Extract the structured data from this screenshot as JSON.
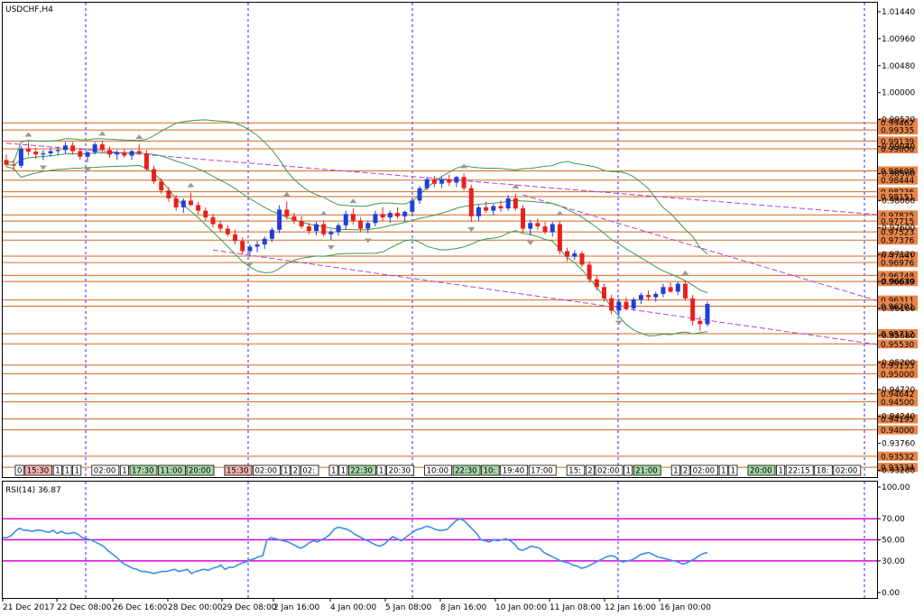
{
  "main": {
    "title": "USDCHF,H4"
  },
  "rsi": {
    "title": "RSI(14) 36.87"
  },
  "colors": {
    "bull": "#1f3fd8",
    "bear": "#e8201c",
    "level_line": "#d2691e",
    "trend_line": "#b040d8",
    "bollinger": "#3c9a4c",
    "rsi_line": "#3a8ee8",
    "rsi_level": "#e000e0",
    "grid": "#2a2aff"
  },
  "chart_data": [
    {
      "type": "candlestick",
      "title": "USDCHF,H4",
      "y_axis_ticks": [
        "1.01440",
        "1.00960",
        "1.00480",
        "1.00000",
        "0.99520",
        "0.99040",
        "0.98560",
        "0.98080",
        "0.97600",
        "0.97120",
        "0.96640",
        "0.96160",
        "0.95680",
        "0.95200",
        "0.94720",
        "0.94240",
        "0.93760",
        "0.93280"
      ],
      "x_axis_ticks": [
        "21 Dec 2017",
        "22 Dec 08:00",
        "26 Dec 16:00",
        "28 Dec 00:00",
        "29 Dec 08:00",
        "2 Jan 16:00",
        "4 Jan 00:00",
        "5 Jan 08:00",
        "8 Jan 16:00",
        "10 Jan 00:00",
        "11 Jan 08:00",
        "12 Jan 16:00",
        "16 Jan 00:00"
      ],
      "ylim": [
        0.9316,
        1.016
      ],
      "grid": "vertical dashed",
      "horizontal_levels": [
        0.99462,
        0.99335,
        0.99139,
        0.99,
        0.98608,
        0.98444,
        0.98236,
        0.98151,
        0.97825,
        0.97715,
        0.97523,
        0.97376,
        0.97091,
        0.96976,
        0.96748,
        0.96639,
        0.96311,
        0.96201,
        0.95712,
        0.9553,
        0.95153,
        0.95,
        0.94642,
        0.945,
        0.94195,
        0.94,
        0.93532,
        0.93334
      ],
      "time_labels": [
        "0",
        "15:30",
        "1",
        "1",
        "1",
        "02:00",
        "1",
        "17:30",
        "11:00",
        "20:00",
        "15:30",
        "02:00",
        "1",
        "2",
        "02:",
        "1",
        "1",
        "22:30",
        "1",
        "20:30",
        "10:00",
        "22:30",
        "10:",
        "19:40",
        "17:00",
        "15:",
        "2",
        "02:00",
        "1",
        "21:00",
        "1",
        "2",
        "02:00",
        "1",
        "1",
        "20:00",
        "1",
        "22:15",
        "18:",
        "02:00",
        "21:30"
      ],
      "candles": [
        {
          "o": 0.988,
          "h": 0.989,
          "l": 0.9868,
          "c": 0.9872
        },
        {
          "o": 0.9872,
          "h": 0.988,
          "l": 0.9862,
          "c": 0.987
        },
        {
          "o": 0.987,
          "h": 0.9905,
          "l": 0.9866,
          "c": 0.99
        },
        {
          "o": 0.99,
          "h": 0.9912,
          "l": 0.9888,
          "c": 0.9895
        },
        {
          "o": 0.9895,
          "h": 0.9902,
          "l": 0.9882,
          "c": 0.989
        },
        {
          "o": 0.989,
          "h": 0.9898,
          "l": 0.988,
          "c": 0.9892
        },
        {
          "o": 0.9892,
          "h": 0.9902,
          "l": 0.9886,
          "c": 0.9896
        },
        {
          "o": 0.9896,
          "h": 0.9904,
          "l": 0.9888,
          "c": 0.9898
        },
        {
          "o": 0.9898,
          "h": 0.9912,
          "l": 0.9892,
          "c": 0.9906
        },
        {
          "o": 0.9906,
          "h": 0.9912,
          "l": 0.989,
          "c": 0.9896
        },
        {
          "o": 0.9896,
          "h": 0.9902,
          "l": 0.988,
          "c": 0.9886
        },
        {
          "o": 0.9886,
          "h": 0.9896,
          "l": 0.9876,
          "c": 0.9894
        },
        {
          "o": 0.9894,
          "h": 0.9912,
          "l": 0.989,
          "c": 0.9908
        },
        {
          "o": 0.9908,
          "h": 0.9914,
          "l": 0.9894,
          "c": 0.9898
        },
        {
          "o": 0.9898,
          "h": 0.9904,
          "l": 0.9884,
          "c": 0.989
        },
        {
          "o": 0.989,
          "h": 0.9898,
          "l": 0.988,
          "c": 0.9894
        },
        {
          "o": 0.9894,
          "h": 0.99,
          "l": 0.9884,
          "c": 0.9888
        },
        {
          "o": 0.9888,
          "h": 0.9898,
          "l": 0.988,
          "c": 0.9896
        },
        {
          "o": 0.9896,
          "h": 0.9908,
          "l": 0.989,
          "c": 0.9892
        },
        {
          "o": 0.9892,
          "h": 0.9898,
          "l": 0.986,
          "c": 0.9864
        },
        {
          "o": 0.9864,
          "h": 0.987,
          "l": 0.9838,
          "c": 0.9842
        },
        {
          "o": 0.9842,
          "h": 0.9848,
          "l": 0.982,
          "c": 0.9826
        },
        {
          "o": 0.9826,
          "h": 0.9832,
          "l": 0.9806,
          "c": 0.9812
        },
        {
          "o": 0.9812,
          "h": 0.9818,
          "l": 0.979,
          "c": 0.9796
        },
        {
          "o": 0.9796,
          "h": 0.9812,
          "l": 0.9786,
          "c": 0.9808
        },
        {
          "o": 0.9808,
          "h": 0.9822,
          "l": 0.9798,
          "c": 0.98
        },
        {
          "o": 0.98,
          "h": 0.9806,
          "l": 0.9784,
          "c": 0.979
        },
        {
          "o": 0.979,
          "h": 0.9796,
          "l": 0.9772,
          "c": 0.9778
        },
        {
          "o": 0.9778,
          "h": 0.9784,
          "l": 0.976,
          "c": 0.9766
        },
        {
          "o": 0.9766,
          "h": 0.9772,
          "l": 0.9752,
          "c": 0.9758
        },
        {
          "o": 0.9758,
          "h": 0.9764,
          "l": 0.9744,
          "c": 0.9748
        },
        {
          "o": 0.9748,
          "h": 0.9756,
          "l": 0.973,
          "c": 0.9736
        },
        {
          "o": 0.9736,
          "h": 0.9742,
          "l": 0.9712,
          "c": 0.9718
        },
        {
          "o": 0.9718,
          "h": 0.973,
          "l": 0.9708,
          "c": 0.9726
        },
        {
          "o": 0.9726,
          "h": 0.9736,
          "l": 0.9716,
          "c": 0.973
        },
        {
          "o": 0.973,
          "h": 0.9744,
          "l": 0.9722,
          "c": 0.974
        },
        {
          "o": 0.974,
          "h": 0.976,
          "l": 0.9734,
          "c": 0.9756
        },
        {
          "o": 0.9756,
          "h": 0.98,
          "l": 0.975,
          "c": 0.9792
        },
        {
          "o": 0.9792,
          "h": 0.9806,
          "l": 0.9774,
          "c": 0.978
        },
        {
          "o": 0.978,
          "h": 0.9786,
          "l": 0.9766,
          "c": 0.9772
        },
        {
          "o": 0.9772,
          "h": 0.978,
          "l": 0.9758,
          "c": 0.9762
        },
        {
          "o": 0.9762,
          "h": 0.9768,
          "l": 0.9748,
          "c": 0.9754
        },
        {
          "o": 0.9754,
          "h": 0.977,
          "l": 0.9746,
          "c": 0.9766
        },
        {
          "o": 0.9766,
          "h": 0.9772,
          "l": 0.9744,
          "c": 0.9748
        },
        {
          "o": 0.9748,
          "h": 0.9756,
          "l": 0.9738,
          "c": 0.9752
        },
        {
          "o": 0.9752,
          "h": 0.9768,
          "l": 0.9746,
          "c": 0.9764
        },
        {
          "o": 0.9764,
          "h": 0.979,
          "l": 0.9756,
          "c": 0.9784
        },
        {
          "o": 0.9784,
          "h": 0.9794,
          "l": 0.9766,
          "c": 0.9772
        },
        {
          "o": 0.9772,
          "h": 0.9778,
          "l": 0.9752,
          "c": 0.9758
        },
        {
          "o": 0.9758,
          "h": 0.9772,
          "l": 0.975,
          "c": 0.9768
        },
        {
          "o": 0.9768,
          "h": 0.979,
          "l": 0.9762,
          "c": 0.9784
        },
        {
          "o": 0.9784,
          "h": 0.9796,
          "l": 0.9772,
          "c": 0.9778
        },
        {
          "o": 0.9778,
          "h": 0.979,
          "l": 0.9768,
          "c": 0.9786
        },
        {
          "o": 0.9786,
          "h": 0.9796,
          "l": 0.9776,
          "c": 0.978
        },
        {
          "o": 0.978,
          "h": 0.979,
          "l": 0.977,
          "c": 0.9788
        },
        {
          "o": 0.9788,
          "h": 0.9812,
          "l": 0.9782,
          "c": 0.9808
        },
        {
          "o": 0.9808,
          "h": 0.9834,
          "l": 0.9802,
          "c": 0.983
        },
        {
          "o": 0.983,
          "h": 0.985,
          "l": 0.9826,
          "c": 0.9846
        },
        {
          "o": 0.9846,
          "h": 0.9852,
          "l": 0.9832,
          "c": 0.9838
        },
        {
          "o": 0.9838,
          "h": 0.985,
          "l": 0.983,
          "c": 0.9846
        },
        {
          "o": 0.9846,
          "h": 0.9854,
          "l": 0.9834,
          "c": 0.984
        },
        {
          "o": 0.984,
          "h": 0.9852,
          "l": 0.9832,
          "c": 0.985
        },
        {
          "o": 0.985,
          "h": 0.9856,
          "l": 0.9826,
          "c": 0.983
        },
        {
          "o": 0.983,
          "h": 0.9836,
          "l": 0.977,
          "c": 0.978
        },
        {
          "o": 0.978,
          "h": 0.98,
          "l": 0.9772,
          "c": 0.9796
        },
        {
          "o": 0.9796,
          "h": 0.9806,
          "l": 0.9786,
          "c": 0.979
        },
        {
          "o": 0.979,
          "h": 0.9802,
          "l": 0.9782,
          "c": 0.9798
        },
        {
          "o": 0.9798,
          "h": 0.9808,
          "l": 0.9788,
          "c": 0.9794
        },
        {
          "o": 0.9794,
          "h": 0.9818,
          "l": 0.979,
          "c": 0.9812
        },
        {
          "o": 0.9812,
          "h": 0.982,
          "l": 0.979,
          "c": 0.9794
        },
        {
          "o": 0.9794,
          "h": 0.98,
          "l": 0.975,
          "c": 0.9758
        },
        {
          "o": 0.9758,
          "h": 0.9774,
          "l": 0.9746,
          "c": 0.9768
        },
        {
          "o": 0.9768,
          "h": 0.9776,
          "l": 0.9756,
          "c": 0.9762
        },
        {
          "o": 0.9762,
          "h": 0.977,
          "l": 0.9748,
          "c": 0.9752
        },
        {
          "o": 0.9752,
          "h": 0.977,
          "l": 0.9744,
          "c": 0.9766
        },
        {
          "o": 0.9766,
          "h": 0.9772,
          "l": 0.9712,
          "c": 0.9718
        },
        {
          "o": 0.9718,
          "h": 0.9724,
          "l": 0.97,
          "c": 0.9708
        },
        {
          "o": 0.9708,
          "h": 0.972,
          "l": 0.9702,
          "c": 0.9714
        },
        {
          "o": 0.9714,
          "h": 0.9718,
          "l": 0.969,
          "c": 0.9694
        },
        {
          "o": 0.9694,
          "h": 0.97,
          "l": 0.9662,
          "c": 0.9668
        },
        {
          "o": 0.9668,
          "h": 0.9674,
          "l": 0.9648,
          "c": 0.9654
        },
        {
          "o": 0.9654,
          "h": 0.966,
          "l": 0.9628,
          "c": 0.9634
        },
        {
          "o": 0.9634,
          "h": 0.964,
          "l": 0.9606,
          "c": 0.9612
        },
        {
          "o": 0.9612,
          "h": 0.9634,
          "l": 0.9604,
          "c": 0.9628
        },
        {
          "o": 0.9628,
          "h": 0.9636,
          "l": 0.9612,
          "c": 0.9616
        },
        {
          "o": 0.9616,
          "h": 0.9636,
          "l": 0.9612,
          "c": 0.9632
        },
        {
          "o": 0.9632,
          "h": 0.9644,
          "l": 0.9624,
          "c": 0.964
        },
        {
          "o": 0.964,
          "h": 0.9648,
          "l": 0.963,
          "c": 0.9636
        },
        {
          "o": 0.9636,
          "h": 0.9646,
          "l": 0.9628,
          "c": 0.9642
        },
        {
          "o": 0.9642,
          "h": 0.966,
          "l": 0.9636,
          "c": 0.9654
        },
        {
          "o": 0.9654,
          "h": 0.9662,
          "l": 0.9644,
          "c": 0.9646
        },
        {
          "o": 0.9646,
          "h": 0.9664,
          "l": 0.964,
          "c": 0.966
        },
        {
          "o": 0.966,
          "h": 0.9666,
          "l": 0.963,
          "c": 0.9634
        },
        {
          "o": 0.9634,
          "h": 0.964,
          "l": 0.9586,
          "c": 0.9594
        },
        {
          "o": 0.9594,
          "h": 0.9602,
          "l": 0.9576,
          "c": 0.9588
        },
        {
          "o": 0.9588,
          "h": 0.9628,
          "l": 0.9584,
          "c": 0.9624
        }
      ]
    },
    {
      "type": "line",
      "title": "RSI(14) 36.87",
      "ylim": [
        0,
        100
      ],
      "levels": [
        70,
        50,
        30
      ],
      "y_axis_ticks": [
        "100.00",
        "70.00",
        "50.00",
        "30.00",
        "0.00"
      ],
      "values": [
        52,
        52,
        54,
        58,
        61,
        59,
        59,
        58,
        59,
        59,
        58,
        57,
        59,
        56,
        58,
        56,
        56,
        57,
        55,
        52,
        51,
        50,
        48,
        46,
        44,
        40,
        37,
        34,
        30,
        27,
        25,
        23,
        22,
        20,
        20,
        19,
        18,
        19,
        20,
        20,
        21,
        22,
        20,
        21,
        22,
        18,
        20,
        21,
        22,
        21,
        23,
        24,
        26,
        22,
        24,
        24,
        26,
        28,
        29,
        31,
        32,
        34,
        35,
        50,
        52,
        51,
        50,
        49,
        48,
        46,
        44,
        42,
        44,
        47,
        49,
        48,
        50,
        52,
        55,
        60,
        62,
        61,
        60,
        58,
        55,
        53,
        51,
        49,
        47,
        45,
        44,
        46,
        50,
        53,
        51,
        49,
        52,
        55,
        58,
        60,
        61,
        63,
        62,
        60,
        59,
        59,
        60,
        64,
        68,
        70,
        68,
        64,
        60,
        56,
        50,
        49,
        48,
        50,
        49,
        50,
        51,
        49,
        46,
        41,
        40,
        42,
        44,
        43,
        42,
        38,
        36,
        34,
        32,
        30,
        29,
        28,
        26,
        25,
        23,
        24,
        26,
        28,
        30,
        32,
        34,
        35,
        34,
        30,
        29,
        30,
        31,
        33,
        36,
        37,
        38,
        36,
        34,
        33,
        32,
        31,
        30,
        29,
        27,
        28,
        30,
        32,
        35,
        37,
        38
      ]
    }
  ]
}
